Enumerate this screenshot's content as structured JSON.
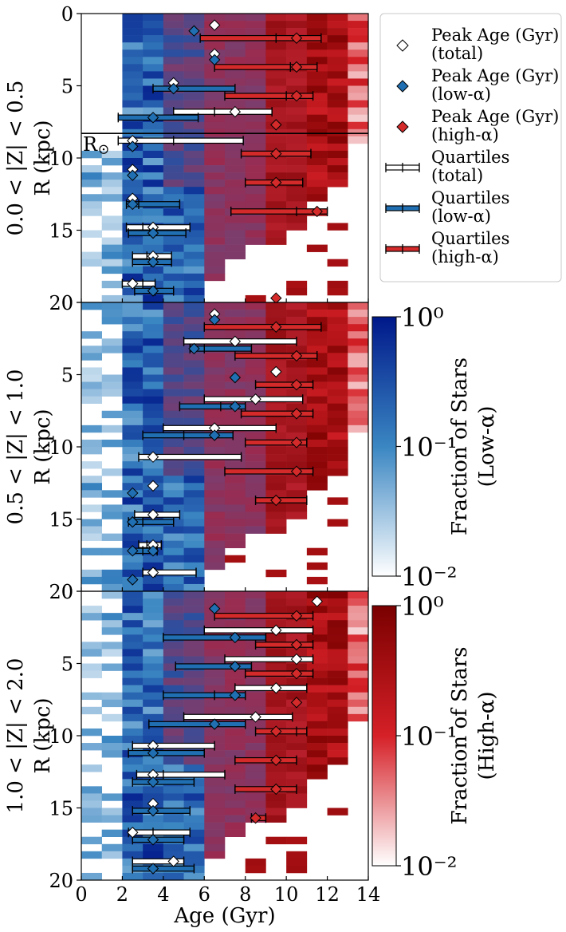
{
  "chart_data": {
    "type": "heatmap",
    "xlabel": "Age (Gyr)",
    "xlim": [
      0,
      14
    ],
    "xticks": [
      "0",
      "2",
      "4",
      "6",
      "8",
      "10",
      "12",
      "14"
    ],
    "ylim": [
      0,
      20
    ],
    "yticks": [
      "0",
      "5",
      "10",
      "15",
      "20"
    ],
    "sun_radius": 8.3,
    "sun_label": "R",
    "panels": [
      {
        "label": "0.0 < |Z| < 0.5",
        "ylabel": "R (kpc)",
        "peak_total": [
          [
            6.5,
            0.8
          ],
          [
            6.5,
            2.8
          ],
          [
            4.5,
            4.8
          ],
          [
            7.5,
            6.8
          ],
          [
            2.5,
            8.8
          ],
          [
            2.5,
            10.8
          ],
          [
            2.5,
            12.8
          ],
          [
            3.5,
            14.8
          ],
          [
            3.5,
            16.8
          ],
          [
            2.5,
            18.7
          ]
        ],
        "peak_low": [
          [
            5.5,
            1.2
          ],
          [
            6.5,
            3.2
          ],
          [
            4.5,
            5.2
          ],
          [
            3.5,
            7.2
          ],
          [
            2.5,
            9.2
          ],
          [
            2.5,
            11.2
          ],
          [
            2.5,
            13.2
          ],
          [
            3.5,
            15.2
          ],
          [
            3.5,
            17.2
          ],
          [
            3.5,
            19.2
          ]
        ],
        "peak_high": [
          [
            10.5,
            1.7
          ],
          [
            10.5,
            3.7
          ],
          [
            10.5,
            5.7
          ],
          [
            9.5,
            7.7
          ],
          [
            9.5,
            9.7
          ],
          [
            9.5,
            11.7
          ],
          [
            11.5,
            13.7
          ],
          [
            9.5,
            19.7
          ]
        ],
        "quart_total": [
          [
            4.5,
            6.5,
            9.3,
            6.8
          ],
          [
            1.8,
            4.5,
            7.9,
            8.8
          ],
          [
            2.2,
            3.0,
            5.3,
            14.8
          ],
          [
            2.5,
            3.2,
            4.4,
            16.8
          ],
          [
            2.0,
            3.0,
            3.6,
            18.7
          ]
        ],
        "quart_low": [
          [
            3.5,
            4.5,
            7.5,
            5.2
          ],
          [
            1.8,
            3.5,
            5.7,
            7.2
          ],
          [
            2.2,
            2.8,
            4.8,
            13.2
          ],
          [
            2.3,
            3.5,
            5.1,
            15.2
          ],
          [
            2.5,
            3.4,
            4.4,
            17.2
          ],
          [
            2.6,
            3.6,
            4.5,
            19.2
          ]
        ],
        "quart_high": [
          [
            5.8,
            9.5,
            11.7,
            1.7
          ],
          [
            6.5,
            10.2,
            11.5,
            3.7
          ],
          [
            7.0,
            10.0,
            11.3,
            5.7
          ],
          [
            7.8,
            9.5,
            11.2,
            9.7
          ],
          [
            8.0,
            9.5,
            10.8,
            11.7
          ],
          [
            7.3,
            10.5,
            12.0,
            13.7
          ]
        ]
      },
      {
        "label": "0.5 < |Z| < 1.0",
        "ylabel": "R (kpc)",
        "peak_total": [
          [
            6.5,
            0.8
          ],
          [
            7.5,
            2.7
          ],
          [
            9.5,
            4.8
          ],
          [
            8.5,
            6.7
          ],
          [
            6.5,
            8.7
          ],
          [
            3.5,
            10.7
          ],
          [
            3.5,
            12.7
          ],
          [
            3.5,
            14.7
          ],
          [
            3.5,
            16.8
          ],
          [
            3.5,
            18.7
          ]
        ],
        "peak_low": [
          [
            6.5,
            1.2
          ],
          [
            5.5,
            3.2
          ],
          [
            7.5,
            5.2
          ],
          [
            7.5,
            7.2
          ],
          [
            6.5,
            9.2
          ],
          [
            2.5,
            13.2
          ],
          [
            2.5,
            15.2
          ],
          [
            2.5,
            17.2
          ],
          [
            3.5,
            17.2
          ],
          [
            2.5,
            19.2
          ]
        ],
        "peak_high": [
          [
            9.5,
            1.7
          ],
          [
            10.5,
            3.7
          ],
          [
            10.5,
            5.7
          ],
          [
            10.5,
            7.7
          ],
          [
            10.5,
            9.7
          ],
          [
            10.5,
            11.7
          ],
          [
            9.5,
            13.7
          ]
        ],
        "quart_total": [
          [
            5.0,
            7.5,
            10.5,
            2.7
          ],
          [
            6.0,
            8.5,
            10.8,
            6.7
          ],
          [
            4.0,
            6.5,
            9.5,
            8.7
          ],
          [
            2.8,
            3.5,
            7.8,
            10.7
          ],
          [
            2.6,
            3.5,
            4.8,
            14.7
          ],
          [
            2.8,
            3.2,
            3.9,
            16.8
          ],
          [
            3.0,
            3.6,
            5.6,
            18.7
          ]
        ],
        "quart_low": [
          [
            5.3,
            6.0,
            8.3,
            3.2
          ],
          [
            4.8,
            6.8,
            8.0,
            7.2
          ],
          [
            3.0,
            5.0,
            7.4,
            9.2
          ],
          [
            2.3,
            3.0,
            4.5,
            15.2
          ],
          [
            2.5,
            3.0,
            3.7,
            17.2
          ]
        ],
        "quart_high": [
          [
            6.0,
            9.5,
            11.7,
            1.7
          ],
          [
            7.5,
            10.5,
            11.5,
            3.7
          ],
          [
            8.5,
            10.5,
            11.3,
            5.7
          ],
          [
            7.8,
            10.5,
            11.3,
            7.7
          ],
          [
            8.0,
            10.5,
            11.0,
            9.7
          ],
          [
            7.0,
            10.5,
            11.3,
            11.7
          ],
          [
            8.5,
            9.5,
            11.0,
            13.7
          ]
        ]
      },
      {
        "label": "1.0 < |Z| < 2.0",
        "ylabel": "R (kpc)",
        "peak_total": [
          [
            11.5,
            0.7
          ],
          [
            9.5,
            2.7
          ],
          [
            10.5,
            4.7
          ],
          [
            9.5,
            6.7
          ],
          [
            8.5,
            8.7
          ],
          [
            3.5,
            10.7
          ],
          [
            3.5,
            12.7
          ],
          [
            3.5,
            14.7
          ],
          [
            2.5,
            16.7
          ],
          [
            4.5,
            18.7
          ]
        ],
        "peak_low": [
          [
            6.5,
            1.2
          ],
          [
            7.5,
            3.2
          ],
          [
            7.5,
            5.2
          ],
          [
            7.5,
            7.2
          ],
          [
            6.5,
            9.2
          ],
          [
            3.5,
            11.2
          ],
          [
            3.5,
            13.2
          ],
          [
            3.5,
            15.2
          ],
          [
            3.5,
            17.2
          ],
          [
            3.5,
            19.2
          ]
        ],
        "peak_high": [
          [
            10.5,
            1.7
          ],
          [
            10.5,
            3.7
          ],
          [
            10.5,
            5.7
          ],
          [
            10.5,
            7.7
          ],
          [
            9.5,
            9.7
          ],
          [
            9.5,
            11.7
          ],
          [
            9.5,
            13.7
          ],
          [
            8.5,
            15.7
          ]
        ],
        "quart_total": [
          [
            6.0,
            9.5,
            11.3,
            2.7
          ],
          [
            7.0,
            10.5,
            11.3,
            4.7
          ],
          [
            7.5,
            9.5,
            11.0,
            6.7
          ],
          [
            5.0,
            8.5,
            10.3,
            8.7
          ],
          [
            2.5,
            3.5,
            6.5,
            10.7
          ],
          [
            2.7,
            4.0,
            7.0,
            12.7
          ],
          [
            2.3,
            3.5,
            5.3,
            16.7
          ],
          [
            2.5,
            4.5,
            5.0,
            18.7
          ]
        ],
        "quart_low": [
          [
            4.0,
            7.5,
            9.0,
            3.2
          ],
          [
            4.6,
            7.5,
            8.3,
            5.2
          ],
          [
            4.0,
            6.5,
            8.0,
            7.2
          ],
          [
            3.3,
            6.5,
            8.0,
            9.2
          ],
          [
            2.3,
            3.5,
            6.0,
            11.2
          ],
          [
            2.5,
            3.5,
            5.5,
            13.2
          ],
          [
            2.5,
            3.5,
            5.3,
            15.2
          ],
          [
            2.5,
            3.5,
            5.0,
            17.2
          ],
          [
            2.5,
            3.5,
            5.5,
            19.2
          ]
        ],
        "quart_high": [
          [
            6.5,
            10.5,
            11.3,
            1.7
          ],
          [
            8.5,
            10.5,
            11.3,
            3.7
          ],
          [
            8.0,
            10.5,
            11.3,
            5.7
          ],
          [
            8.5,
            10.5,
            11.0,
            9.7
          ],
          [
            7.5,
            9.5,
            10.5,
            11.7
          ],
          [
            7.5,
            9.5,
            10.5,
            13.7
          ],
          [
            8.3,
            8.5,
            9.0,
            15.7
          ]
        ]
      }
    ],
    "legend": [
      {
        "label1": "Peak Age (Gyr)",
        "label2": " (total)",
        "kind": "diamond",
        "color": "#ffffff"
      },
      {
        "label1": "Peak Age (Gyr)",
        "label2": " (low-α)",
        "kind": "diamond",
        "color": "#1f6fb2"
      },
      {
        "label1": "Peak Age (Gyr)",
        "label2": " (high-α)",
        "kind": "diamond",
        "color": "#d42a2a"
      },
      {
        "label1": "Quartiles",
        "label2": " (total)",
        "kind": "bar",
        "color": "#ffffff"
      },
      {
        "label1": "Quartiles",
        "label2": " (low-α)",
        "kind": "bar",
        "color": "#1f6fb2"
      },
      {
        "label1": "Quartiles",
        "label2": " (high-α)",
        "kind": "bar",
        "color": "#d42a2a"
      }
    ],
    "colorbars": [
      {
        "label1": "Fraction of Stars",
        "label2": "(Low-α)",
        "ticks": [
          "10⁰",
          "10⁻¹",
          "10⁻²"
        ],
        "color_max": "#00188a",
        "color_mid": "#3a86c2",
        "color_min": "#ffffff"
      },
      {
        "label1": "Fraction of Stars",
        "label2": "(High-α)",
        "ticks": [
          "10⁰",
          "10⁻¹",
          "10⁻²"
        ],
        "color_max": "#7a0000",
        "color_mid": "#d52027",
        "color_min": "#ffffff"
      }
    ],
    "colors": {
      "low": "#1f6fb2",
      "high": "#d42a2a",
      "total": "#ffffff"
    }
  }
}
